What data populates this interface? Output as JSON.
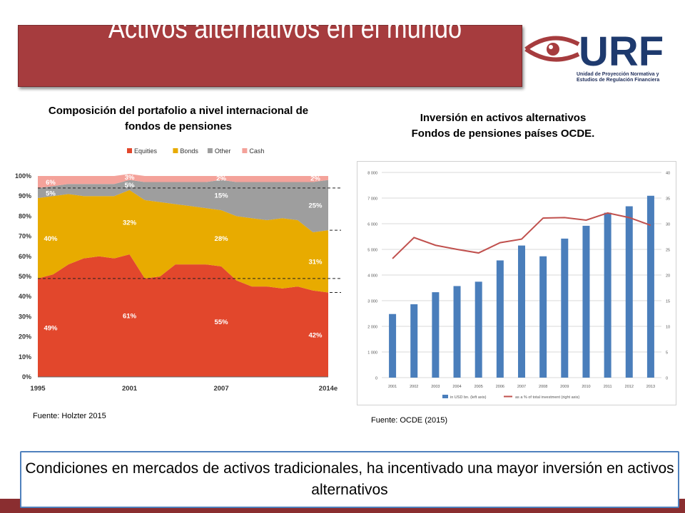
{
  "slide": {
    "title": "Activos alternativos en el mundo",
    "logo": {
      "text": "URF",
      "subtitle_line1": "Unidad de Proyección Normativa y",
      "subtitle_line2": "Estudios de Regulación Financiera",
      "colors": {
        "eye": "#a63c3e",
        "text": "#1e3a6e"
      }
    },
    "left_chart_title_line1": "Composición del portafolio a nivel internacional de",
    "left_chart_title_line2": "fondos de pensiones",
    "right_chart_title_line1": "Inversión en activos alternativos",
    "right_chart_title_line2": "Fondos de pensiones países OCDE.",
    "left_source": "Fuente: Holzter 2015",
    "right_source": "Fuente: OCDE (2015)",
    "bottom_text": "Condiciones en mercados de activos tradicionales, ha incentivado una mayor inversión en activos alternativos"
  },
  "chart_data": [
    {
      "type": "area",
      "stacked": true,
      "x": [
        1995,
        1996,
        1997,
        1998,
        1999,
        2000,
        2001,
        2002,
        2003,
        2004,
        2005,
        2006,
        2007,
        2008,
        2009,
        2010,
        2011,
        2012,
        2013,
        "2014e"
      ],
      "x_tick_labels": [
        "1995",
        "2001",
        "2007",
        "2014e"
      ],
      "y_tick_labels": [
        "0%",
        "10%",
        "20%",
        "30%",
        "40%",
        "50%",
        "60%",
        "70%",
        "80%",
        "90%",
        "100%"
      ],
      "ylim": [
        0,
        100
      ],
      "legend": [
        "Equities",
        "Bonds",
        "Other",
        "Cash"
      ],
      "legend_position": "top",
      "series": [
        {
          "name": "Equities",
          "color": "#e2472c",
          "values": [
            49,
            51,
            56,
            59,
            60,
            59,
            61,
            49,
            50,
            56,
            56,
            56,
            55,
            48,
            45,
            45,
            44,
            45,
            43,
            42
          ]
        },
        {
          "name": "Bonds",
          "color": "#e8ab00",
          "values": [
            40,
            39,
            35,
            31,
            30,
            31,
            32,
            39,
            37,
            30,
            29,
            28,
            28,
            32,
            34,
            33,
            35,
            33,
            29,
            31
          ]
        },
        {
          "name": "Other",
          "color": "#9e9e9e",
          "values": [
            5,
            5,
            5,
            6,
            6,
            6,
            5,
            9,
            10,
            11,
            12,
            13,
            15,
            17,
            18,
            19,
            18,
            19,
            25,
            25
          ]
        },
        {
          "name": "Cash",
          "color": "#f4a29a",
          "values": [
            6,
            5,
            4,
            4,
            4,
            4,
            3,
            3,
            3,
            3,
            3,
            3,
            2,
            3,
            3,
            3,
            3,
            3,
            3,
            2
          ]
        }
      ],
      "data_labels": [
        {
          "x": 1995,
          "series": "Equities",
          "text": "49%"
        },
        {
          "x": 1995,
          "series": "Bonds",
          "text": "40%"
        },
        {
          "x": 1995,
          "series": "Other",
          "text": "5%"
        },
        {
          "x": 1995,
          "series": "Cash",
          "text": "6%"
        },
        {
          "x": 2001,
          "series": "Equities",
          "text": "61%"
        },
        {
          "x": 2001,
          "series": "Bonds",
          "text": "32%"
        },
        {
          "x": 2001,
          "series": "Other",
          "text": "5%"
        },
        {
          "x": 2001,
          "series": "Cash",
          "text": "3%"
        },
        {
          "x": 2007,
          "series": "Equities",
          "text": "55%"
        },
        {
          "x": 2007,
          "series": "Bonds",
          "text": "28%"
        },
        {
          "x": 2007,
          "series": "Other",
          "text": "15%"
        },
        {
          "x": 2007,
          "series": "Cash",
          "text": "2%"
        },
        {
          "x": "2014e",
          "series": "Equities",
          "text": "42%"
        },
        {
          "x": "2014e",
          "series": "Bonds",
          "text": "31%"
        },
        {
          "x": "2014e",
          "series": "Other",
          "text": "25%"
        },
        {
          "x": "2014e",
          "series": "Cash",
          "text": "2%"
        }
      ],
      "reference_lines": [
        49,
        94
      ]
    },
    {
      "type": "bar",
      "categories": [
        "2001",
        "2002",
        "2003",
        "2004",
        "2005",
        "2006",
        "2007",
        "2008",
        "2009",
        "2010",
        "2011",
        "2012",
        "2013"
      ],
      "ylim": [
        0,
        8000
      ],
      "y2lim": [
        0,
        40
      ],
      "y_tick_labels": [
        "0",
        "1 000",
        "2 000",
        "3 000",
        "4 000",
        "5 000",
        "6 000",
        "7 000",
        "8 000"
      ],
      "y2_tick_labels": [
        "0",
        "5",
        "10",
        "15",
        "20",
        "25",
        "30",
        "35",
        "40"
      ],
      "grid": true,
      "legend_position": "bottom",
      "series": [
        {
          "name": "in USD bn. (left axis)",
          "type": "bar",
          "color": "#4a7ebb",
          "values": [
            2480,
            2860,
            3330,
            3570,
            3740,
            4570,
            5150,
            4730,
            5420,
            5920,
            6430,
            6680,
            7090
          ]
        },
        {
          "name": "as a % of total investment (right axis)",
          "type": "line",
          "axis": "right",
          "color": "#c0504d",
          "values": [
            23.2,
            27.3,
            25.8,
            25.0,
            24.3,
            26.3,
            27.0,
            31.1,
            31.2,
            30.7,
            32.1,
            31.2,
            29.7
          ]
        }
      ]
    }
  ]
}
